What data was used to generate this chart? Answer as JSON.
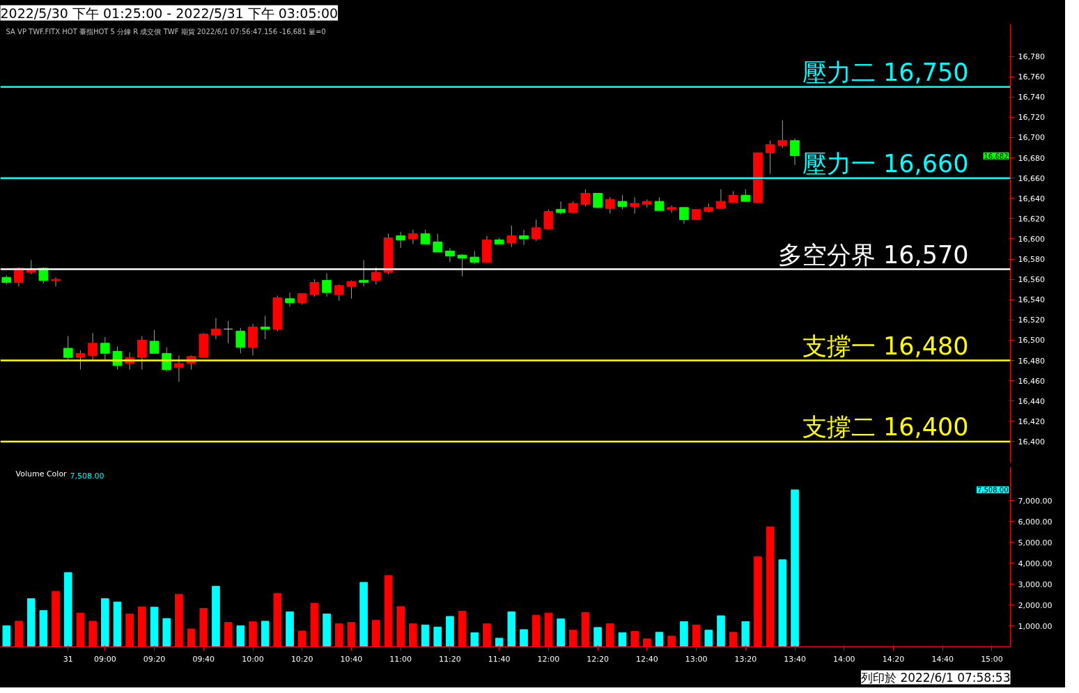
{
  "chart_data": [
    {
      "type": "candlestick",
      "title": "2022/5/30 下午 01:25:00 - 2022/5/31 下午 03:05:00",
      "subtitle": "SA  VP  TWF.FITX HOT  臺指HOT  5 分鐘  R  成交價  TWF  期貨  2022/6/1  07:56:47.156  -16,681  量=0",
      "categories": [
        null,
        null,
        null,
        null,
        null,
        null,
        null,
        null,
        null,
        null,
        null,
        null,
        null,
        null,
        null,
        null,
        null,
        null,
        null,
        null,
        null,
        null,
        null,
        null,
        null,
        null,
        null,
        null,
        null,
        null,
        null,
        null,
        null,
        null,
        null,
        null,
        null,
        null,
        null,
        null,
        null,
        null,
        null,
        null,
        null,
        null,
        null,
        null,
        null,
        null,
        null,
        null,
        null,
        null,
        null,
        null,
        null,
        null,
        null,
        null,
        null,
        null,
        null,
        null,
        null,
        null,
        null,
        null,
        null,
        null,
        null,
        null,
        null,
        null,
        null,
        null,
        null,
        null,
        null,
        null,
        null,
        null
      ],
      "ohlc": [
        [
          16562,
          16564,
          16555,
          16557
        ],
        [
          16557,
          16572,
          16553,
          16571
        ],
        [
          16567,
          16579,
          16565,
          16569
        ],
        [
          16571,
          16572,
          16556,
          16559
        ],
        [
          16559,
          16562,
          16553,
          16560
        ],
        [
          16492,
          16504,
          16481,
          16483
        ],
        [
          16483,
          16490,
          16471,
          16487
        ],
        [
          16485,
          16507,
          16481,
          16497
        ],
        [
          16497,
          16503,
          16481,
          16487
        ],
        [
          16489,
          16494,
          16471,
          16475
        ],
        [
          16477,
          16488,
          16471,
          16483
        ],
        [
          16483,
          16504,
          16471,
          16500
        ],
        [
          16499,
          16510,
          16487,
          16487
        ],
        [
          16487,
          16493,
          16469,
          16471
        ],
        [
          16473,
          16485,
          16459,
          16477
        ],
        [
          16477,
          16485,
          16471,
          16484
        ],
        [
          16483,
          16507,
          16483,
          16506
        ],
        [
          16505,
          16522,
          16501,
          16511
        ],
        [
          16511,
          16519,
          16497,
          16511
        ],
        [
          16509,
          16512,
          16487,
          16493
        ],
        [
          16493,
          16516,
          16485,
          16513
        ],
        [
          16513,
          16524,
          16501,
          16511
        ],
        [
          16511,
          16544,
          16509,
          16542
        ],
        [
          16541,
          16547,
          16533,
          16537
        ],
        [
          16537,
          16546,
          16535,
          16546
        ],
        [
          16545,
          16560,
          16543,
          16557
        ],
        [
          16559,
          16566,
          16543,
          16547
        ],
        [
          16545,
          16555,
          16539,
          16554
        ],
        [
          16553,
          16559,
          16541,
          16558
        ],
        [
          16559,
          16579,
          16553,
          16557
        ],
        [
          16559,
          16572,
          16555,
          16567
        ],
        [
          16567,
          16605,
          16565,
          16601
        ],
        [
          16603,
          16607,
          16591,
          16599
        ],
        [
          16600,
          16609,
          16595,
          16605
        ],
        [
          16605,
          16609,
          16595,
          16595
        ],
        [
          16597,
          16605,
          16587,
          16587
        ],
        [
          16588,
          16591,
          16577,
          16583
        ],
        [
          16584,
          16585,
          16563,
          16581
        ],
        [
          16582,
          16588,
          16575,
          16577
        ],
        [
          16577,
          16603,
          16577,
          16599
        ],
        [
          16599,
          16601,
          16595,
          16595
        ],
        [
          16596,
          16613,
          16592,
          16603
        ],
        [
          16603,
          16609,
          16594,
          16600
        ],
        [
          16600,
          16619,
          16598,
          16611
        ],
        [
          16610,
          16629,
          16609,
          16627
        ],
        [
          16629,
          16637,
          16624,
          16626
        ],
        [
          16626,
          16637,
          16625,
          16635
        ],
        [
          16634,
          16649,
          16632,
          16645
        ],
        [
          16645,
          16645,
          16630,
          16631
        ],
        [
          16630,
          16641,
          16625,
          16639
        ],
        [
          16637,
          16643,
          16629,
          16632
        ],
        [
          16632,
          16641,
          16625,
          16635
        ],
        [
          16634,
          16639,
          16631,
          16637
        ],
        [
          16637,
          16641,
          16628,
          16628
        ],
        [
          16629,
          16633,
          16626,
          16631
        ],
        [
          16631,
          16631,
          16615,
          16619
        ],
        [
          16619,
          16629,
          16619,
          16629
        ],
        [
          16627,
          16635,
          16626,
          16631
        ],
        [
          16630,
          16649,
          16630,
          16637
        ],
        [
          16636,
          16647,
          16636,
          16643
        ],
        [
          16643,
          16649,
          16636,
          16637
        ],
        [
          16636,
          16685,
          16635,
          16685
        ],
        [
          16685,
          16697,
          16664,
          16693
        ],
        [
          16692,
          16717,
          16690,
          16697
        ],
        [
          16697,
          16699,
          16673,
          16682
        ],
        null,
        null,
        null,
        null,
        null,
        null,
        null,
        null,
        null,
        null,
        null,
        null,
        null,
        null,
        null,
        null,
        null
      ],
      "colors": [
        "#00ff00",
        "#ff0000",
        "#ff0000",
        "#00ff00",
        "#ff0000",
        "#00ff00",
        "#ff0000",
        "#ff0000",
        "#00ff00",
        "#00ff00",
        "#ff0000",
        "#ff0000",
        "#00ff00",
        "#00ff00",
        "#ff0000",
        "#ff0000",
        "#ff0000",
        "#ff0000",
        "#c0c0c0",
        "#00ff00",
        "#ff0000",
        "#00ff00",
        "#ff0000",
        "#00ff00",
        "#ff0000",
        "#ff0000",
        "#00ff00",
        "#ff0000",
        "#ff0000",
        "#00ff00",
        "#ff0000",
        "#ff0000",
        "#00ff00",
        "#ff0000",
        "#00ff00",
        "#00ff00",
        "#00ff00",
        "#00ff00",
        "#00ff00",
        "#ff0000",
        "#00ff00",
        "#ff0000",
        "#00ff00",
        "#ff0000",
        "#ff0000",
        "#00ff00",
        "#ff0000",
        "#ff0000",
        "#00ff00",
        "#ff0000",
        "#00ff00",
        "#ff0000",
        "#ff0000",
        "#00ff00",
        "#ff0000",
        "#00ff00",
        "#ff0000",
        "#ff0000",
        "#ff0000",
        "#ff0000",
        "#00ff00",
        "#ff0000",
        "#ff0000",
        "#ff0000",
        "#00ff00",
        null,
        null,
        null,
        null,
        null,
        null,
        null,
        null,
        null,
        null,
        null,
        null,
        null,
        null,
        null,
        null,
        null
      ],
      "ylim": [
        16379,
        16812
      ],
      "yticks": [
        {
          "value": 16400,
          "label": "16,400"
        },
        {
          "value": 16420,
          "label": "16,420"
        },
        {
          "value": 16440,
          "label": "16,440"
        },
        {
          "value": 16460,
          "label": "16,460"
        },
        {
          "value": 16480,
          "label": "16,480"
        },
        {
          "value": 16500,
          "label": "16,500"
        },
        {
          "value": 16520,
          "label": "16,520"
        },
        {
          "value": 16540,
          "label": "16,540"
        },
        {
          "value": 16560,
          "label": "16,560"
        },
        {
          "value": 16580,
          "label": "16,580"
        },
        {
          "value": 16600,
          "label": "16,600"
        },
        {
          "value": 16620,
          "label": "16,620"
        },
        {
          "value": 16640,
          "label": "16,640"
        },
        {
          "value": 16660,
          "label": "16,660"
        },
        {
          "value": 16680,
          "label": "16,680"
        },
        {
          "value": 16700,
          "label": "16,700"
        },
        {
          "value": 16720,
          "label": "16,720"
        },
        {
          "value": 16740,
          "label": "16,740"
        },
        {
          "value": 16760,
          "label": "16,760"
        },
        {
          "value": 16780,
          "label": "16,780"
        }
      ],
      "tick_labels": "y",
      "ref_lines": [
        {
          "axis": "y",
          "value": 16750,
          "label": "壓力二 16,750",
          "color": "#00ffff"
        },
        {
          "axis": "y",
          "value": 16660,
          "label": "壓力一 16,660",
          "color": "#00ffff"
        },
        {
          "axis": "y",
          "value": 16570,
          "label": "多空分界 16,570",
          "color": "#ffffff"
        },
        {
          "axis": "y",
          "value": 16480,
          "label": "支撐一 16,480",
          "color": "#ffff00"
        },
        {
          "axis": "y",
          "value": 16400,
          "label": "支撐二 16,400",
          "color": "#ffff00"
        }
      ],
      "annotations": [
        "16,682"
      ]
    },
    {
      "type": "bar",
      "title": "Volume Color",
      "categories": [
        null,
        null,
        null,
        null,
        null,
        "31",
        null,
        null,
        "09:00",
        null,
        null,
        null,
        "09:20",
        null,
        null,
        null,
        "09:40",
        null,
        null,
        null,
        "10:00",
        null,
        null,
        null,
        "10:20",
        null,
        null,
        null,
        "10:40",
        null,
        null,
        null,
        "11:00",
        null,
        null,
        null,
        "11:20",
        null,
        null,
        null,
        "11:40",
        null,
        null,
        null,
        "12:00",
        null,
        null,
        null,
        "12:20",
        null,
        null,
        null,
        "12:40",
        null,
        null,
        null,
        "13:00",
        null,
        null,
        null,
        "13:20",
        null,
        null,
        null,
        "13:40",
        null,
        null,
        null,
        "14:00",
        null,
        null,
        null,
        "14:20",
        null,
        null,
        null,
        "14:40",
        null,
        null,
        null,
        "15:00",
        null
      ],
      "values": [
        1000,
        1220,
        2300,
        1730,
        2650,
        3550,
        1610,
        1220,
        2300,
        2140,
        1570,
        1910,
        1890,
        1350,
        2510,
        850,
        1830,
        2890,
        1160,
        1000,
        1190,
        1220,
        2550,
        1670,
        750,
        2080,
        1570,
        1100,
        1160,
        3080,
        1260,
        3400,
        1920,
        1100,
        1040,
        940,
        1450,
        1700,
        670,
        1100,
        410,
        1670,
        820,
        1510,
        1610,
        1330,
        790,
        1640,
        920,
        1100,
        670,
        730,
        380,
        690,
        510,
        1200,
        1040,
        790,
        1480,
        690,
        1200,
        4310,
        5740,
        4160,
        7508,
        null,
        null,
        null,
        null,
        null,
        null,
        null,
        null,
        null,
        null,
        null,
        null,
        null,
        null,
        null,
        null,
        null
      ],
      "colors": [
        "#00ffff",
        "#ff0000",
        "#00ffff",
        "#00ffff",
        "#ff0000",
        "#00ffff",
        "#ff0000",
        "#ff0000",
        "#00ffff",
        "#00ffff",
        "#ff0000",
        "#ff0000",
        "#00ffff",
        "#00ffff",
        "#ff0000",
        "#ff0000",
        "#ff0000",
        "#00ffff",
        "#ff0000",
        "#00ffff",
        "#ff0000",
        "#00ffff",
        "#ff0000",
        "#00ffff",
        "#ff0000",
        "#ff0000",
        "#00ffff",
        "#ff0000",
        "#ff0000",
        "#00ffff",
        "#ff0000",
        "#ff0000",
        "#ff0000",
        "#ff0000",
        "#00ffff",
        "#00ffff",
        "#00ffff",
        "#ff0000",
        "#00ffff",
        "#ff0000",
        "#00ffff",
        "#00ffff",
        "#00ffff",
        "#ff0000",
        "#ff0000",
        "#00ffff",
        "#ff0000",
        "#ff0000",
        "#00ffff",
        "#ff0000",
        "#00ffff",
        "#ff0000",
        "#ff0000",
        "#00ffff",
        "#ff0000",
        "#00ffff",
        "#ff0000",
        "#00ffff",
        "#00ffff",
        "#ff0000",
        "#00ffff",
        "#ff0000",
        "#ff0000",
        "#00ffff",
        "#00ffff",
        null,
        null,
        null,
        null,
        null,
        null,
        null,
        null,
        null,
        null,
        null,
        null,
        null,
        null,
        null,
        null,
        null
      ],
      "ylim": [
        0,
        8600
      ],
      "yticks": [
        {
          "value": 1000,
          "label": "1,000.00"
        },
        {
          "value": 2000,
          "label": "2,000.00"
        },
        {
          "value": 3000,
          "label": "3,000.00"
        },
        {
          "value": 4000,
          "label": "4,000.00"
        },
        {
          "value": 5000,
          "label": "5,000.00"
        },
        {
          "value": 6000,
          "label": "6,000.00"
        },
        {
          "value": 7000,
          "label": "7,000.00"
        }
      ],
      "annotations": [
        "7,508.00",
        "7,508.00",
        "列印於 2022/6/1 07:58:53"
      ]
    }
  ]
}
